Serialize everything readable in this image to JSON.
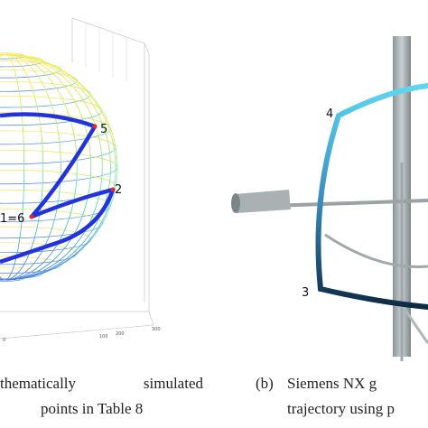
{
  "panel_a": {
    "point_labels": [
      "5",
      "2",
      "1=6"
    ],
    "axis_ticks": [
      "0",
      "100",
      "200",
      "300"
    ],
    "caption": [
      "thematically",
      "simulated",
      "points in Table 8"
    ]
  },
  "panel_b": {
    "point_labels": [
      "4",
      "3"
    ],
    "caption_tag": "(b)",
    "caption": [
      "Siemens NX g",
      "trajectory using p"
    ]
  }
}
